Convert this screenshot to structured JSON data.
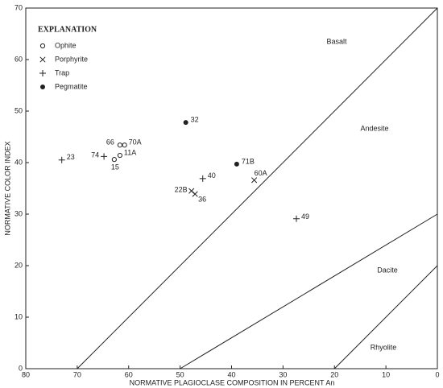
{
  "chart_data": {
    "type": "scatter",
    "xlabel": "NORMATIVE PLAGIOCLASE COMPOSITION IN PERCENT An",
    "ylabel": "NORMATIVE COLOR INDEX",
    "xlim": [
      80,
      0
    ],
    "ylim": [
      0,
      70
    ],
    "xticks": [
      80,
      70,
      60,
      50,
      40,
      30,
      20,
      10,
      0
    ],
    "yticks": [
      0,
      10,
      20,
      30,
      40,
      50,
      60,
      70
    ],
    "legend_title": "EXPLANATION",
    "legend": "upper left",
    "series": [
      {
        "name": "Ophite",
        "marker": "circle-open",
        "color": "#222222",
        "x": [
          61.7,
          60.8,
          61.7,
          62.8
        ],
        "values": [
          43.4,
          43.4,
          41.4,
          40.6
        ],
        "labels": [
          "66",
          "70A",
          "11A",
          "15"
        ]
      },
      {
        "name": "Porphyrite",
        "marker": "x",
        "color": "#222222",
        "x": [
          47.8,
          47.1,
          35.6
        ],
        "values": [
          34.5,
          33.9,
          36.6
        ],
        "labels": [
          "22B",
          "36",
          "60A"
        ]
      },
      {
        "name": "Trap",
        "marker": "plus",
        "color": "#222222",
        "x": [
          73.0,
          64.8,
          45.6,
          27.4
        ],
        "values": [
          40.5,
          41.2,
          36.9,
          29.1
        ],
        "labels": [
          "23",
          "74",
          "40",
          "49"
        ]
      },
      {
        "name": "Pegmatite",
        "marker": "circle-filled",
        "color": "#222222",
        "x": [
          48.9,
          39.0
        ],
        "values": [
          47.8,
          39.7
        ],
        "labels": [
          "32",
          "71B"
        ]
      }
    ],
    "boundaries": [
      {
        "x": [
          70,
          0
        ],
        "y": [
          0,
          70
        ]
      },
      {
        "x": [
          50,
          0
        ],
        "y": [
          0,
          30
        ]
      },
      {
        "x": [
          20,
          0
        ],
        "y": [
          0,
          20
        ]
      }
    ],
    "field_labels": [
      "Basalt",
      "Andesite",
      "Dacite",
      "Rhyolite"
    ]
  }
}
